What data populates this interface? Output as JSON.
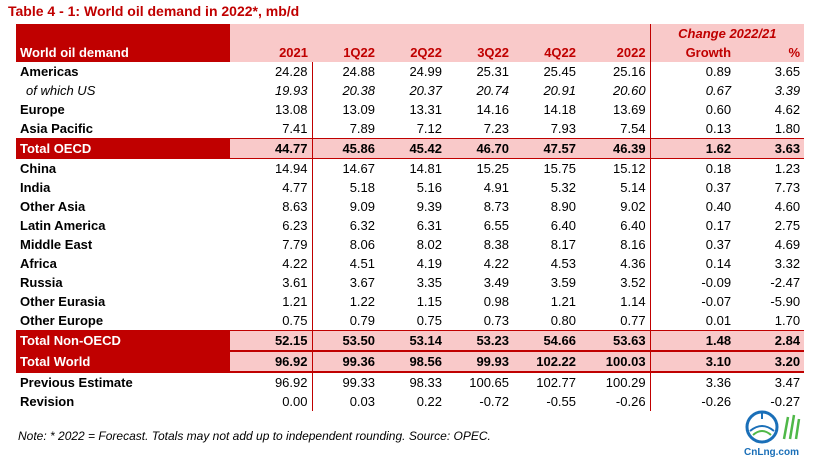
{
  "title": "Table 4 - 1: World oil demand in 2022*, mb/d",
  "header": {
    "change_group": "Change 2022/21",
    "row_label": "World oil demand",
    "columns": [
      "2021",
      "1Q22",
      "2Q22",
      "3Q22",
      "4Q22",
      "2022",
      "Growth",
      "%"
    ]
  },
  "rows": [
    {
      "label": "Americas",
      "values": [
        "24.28",
        "24.88",
        "24.99",
        "25.31",
        "25.45",
        "25.16",
        "0.89",
        "3.65"
      ]
    },
    {
      "label": "of which US",
      "values": [
        "19.93",
        "20.38",
        "20.37",
        "20.74",
        "20.91",
        "20.60",
        "0.67",
        "3.39"
      ]
    },
    {
      "label": "Europe",
      "values": [
        "13.08",
        "13.09",
        "13.31",
        "14.16",
        "14.18",
        "13.69",
        "0.60",
        "4.62"
      ]
    },
    {
      "label": "Asia Pacific",
      "values": [
        "7.41",
        "7.89",
        "7.12",
        "7.23",
        "7.93",
        "7.54",
        "0.13",
        "1.80"
      ]
    },
    {
      "label": "Total OECD",
      "values": [
        "44.77",
        "45.86",
        "45.42",
        "46.70",
        "47.57",
        "46.39",
        "1.62",
        "3.63"
      ]
    },
    {
      "label": "China",
      "values": [
        "14.94",
        "14.67",
        "14.81",
        "15.25",
        "15.75",
        "15.12",
        "0.18",
        "1.23"
      ]
    },
    {
      "label": "India",
      "values": [
        "4.77",
        "5.18",
        "5.16",
        "4.91",
        "5.32",
        "5.14",
        "0.37",
        "7.73"
      ]
    },
    {
      "label": "Other Asia",
      "values": [
        "8.63",
        "9.09",
        "9.39",
        "8.73",
        "8.90",
        "9.02",
        "0.40",
        "4.60"
      ]
    },
    {
      "label": "Latin America",
      "values": [
        "6.23",
        "6.32",
        "6.31",
        "6.55",
        "6.40",
        "6.40",
        "0.17",
        "2.75"
      ]
    },
    {
      "label": "Middle East",
      "values": [
        "7.79",
        "8.06",
        "8.02",
        "8.38",
        "8.17",
        "8.16",
        "0.37",
        "4.69"
      ]
    },
    {
      "label": "Africa",
      "values": [
        "4.22",
        "4.51",
        "4.19",
        "4.22",
        "4.53",
        "4.36",
        "0.14",
        "3.32"
      ]
    },
    {
      "label": "Russia",
      "values": [
        "3.61",
        "3.67",
        "3.35",
        "3.49",
        "3.59",
        "3.52",
        "-0.09",
        "-2.47"
      ]
    },
    {
      "label": "Other Eurasia",
      "values": [
        "1.21",
        "1.22",
        "1.15",
        "0.98",
        "1.21",
        "1.14",
        "-0.07",
        "-5.90"
      ]
    },
    {
      "label": "Other Europe",
      "values": [
        "0.75",
        "0.79",
        "0.75",
        "0.73",
        "0.80",
        "0.77",
        "0.01",
        "1.70"
      ]
    },
    {
      "label": "Total Non-OECD",
      "values": [
        "52.15",
        "53.50",
        "53.14",
        "53.23",
        "54.66",
        "53.63",
        "1.48",
        "2.84"
      ]
    },
    {
      "label": "Total World",
      "values": [
        "96.92",
        "99.36",
        "98.56",
        "99.93",
        "102.22",
        "100.03",
        "3.10",
        "3.20"
      ]
    },
    {
      "label": "Previous Estimate",
      "values": [
        "96.92",
        "99.33",
        "98.33",
        "100.65",
        "102.77",
        "100.29",
        "3.36",
        "3.47"
      ]
    },
    {
      "label": "Revision",
      "values": [
        "0.00",
        "0.03",
        "0.22",
        "-0.72",
        "-0.55",
        "-0.26",
        "-0.26",
        "-0.27"
      ]
    }
  ],
  "note": "Note: * 2022 = Forecast. Totals may not add up to independent rounding. Source: OPEC.",
  "watermark": {
    "text": "CnLng.com",
    "icon": "cnlng-logo"
  },
  "colors": {
    "accent": "#c00000",
    "highlight": "#f9c9c9"
  }
}
